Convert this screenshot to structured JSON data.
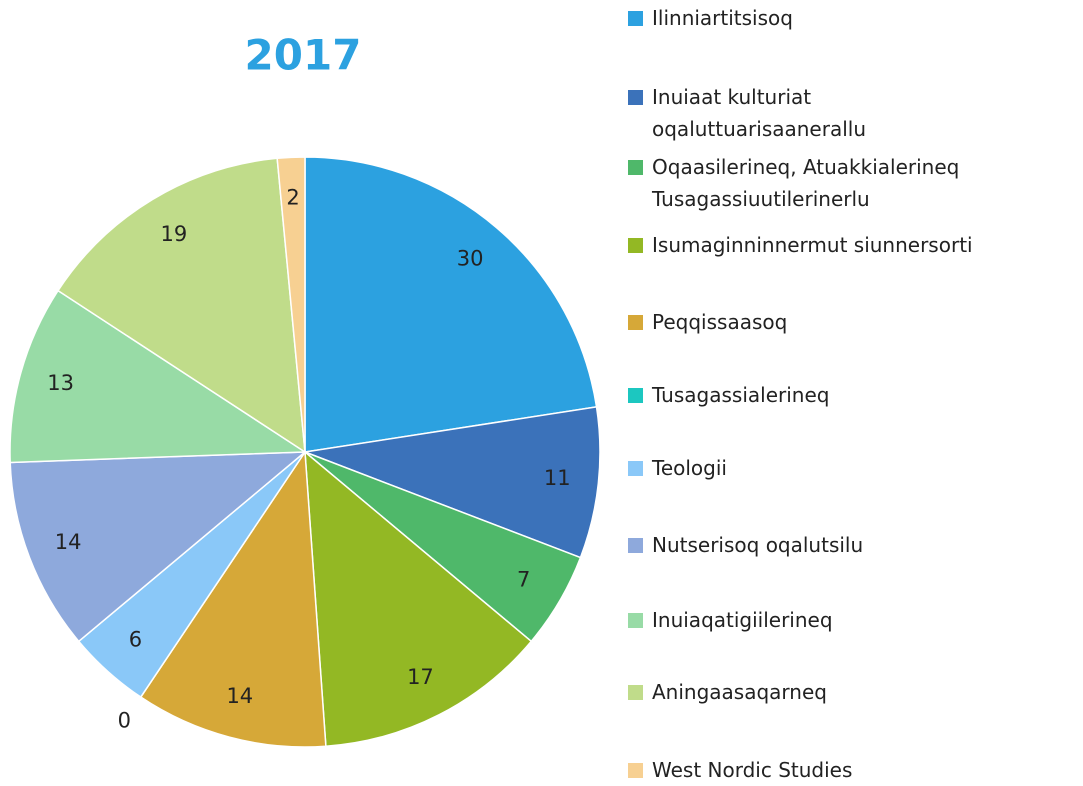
{
  "chart_data": {
    "type": "pie",
    "title": "2017",
    "categories": [
      "Ilinniartitsisoq",
      "Inuiaat kulturiat\noqaluttuarisaanerallu",
      "Oqaasilerineq, Atuakkialerineq\nTusagassiuutilerinerlu",
      "Isumaginninnermut siunnersorti",
      "Peqqissaasoq",
      "Tusagassialerineq",
      "Teologii",
      "Nutserisoq oqalutsilu",
      "Inuiaqatigiilerineq",
      "Aningaasaqarneq",
      "West Nordic Studies"
    ],
    "values": [
      30,
      11,
      7,
      17,
      14,
      0,
      6,
      14,
      13,
      19,
      2
    ],
    "colors": [
      "#2ca1e0",
      "#3b72ba",
      "#4fb86a",
      "#93b824",
      "#d6a838",
      "#1cc7c0",
      "#8ac8f8",
      "#8ea9dc",
      "#98dba6",
      "#c0dc8a",
      "#f7d092"
    ]
  }
}
